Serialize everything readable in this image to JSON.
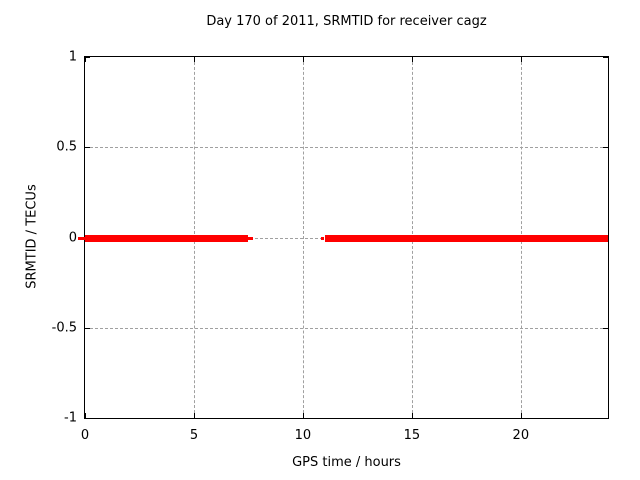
{
  "chart_data": {
    "type": "line",
    "title": "Day 170 of 2011, SRMTID for receiver cagz",
    "xlabel": "GPS time / hours",
    "ylabel": "SRMTID / TECUs",
    "xlim": [
      0,
      24
    ],
    "ylim": [
      -1,
      1
    ],
    "xticks": [
      0,
      5,
      10,
      15,
      20
    ],
    "yticks": [
      -1,
      -0.5,
      0,
      0.5,
      1
    ],
    "grid": true,
    "legend": "none",
    "series": [
      {
        "name": "SRMTID",
        "color": "#ff0000",
        "line_width": 7,
        "segments": [
          {
            "x_start": 0,
            "x_end": 7.5,
            "y": 0
          },
          {
            "x_start": 11,
            "x_end": 24,
            "y": 0
          }
        ]
      }
    ],
    "thin_dashes": [
      {
        "x_start": -0.3,
        "x_end": 0,
        "y": 0
      },
      {
        "x_start": 7.48,
        "x_end": 7.7,
        "y": 0
      },
      {
        "x_start": 10.83,
        "x_end": 10.97,
        "y": 0
      }
    ],
    "colors": {
      "line": "#ff0000",
      "grid": "#a0a0a0",
      "axis": "#000000",
      "background": "#ffffff"
    }
  }
}
